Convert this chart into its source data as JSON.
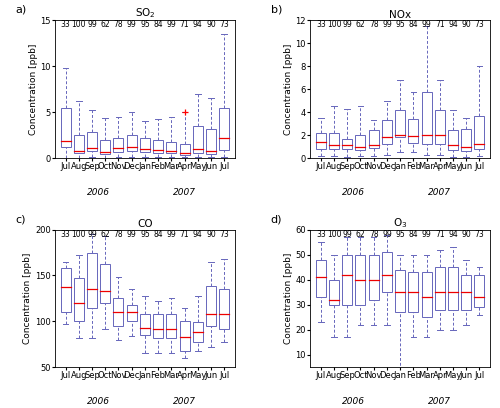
{
  "months": [
    "Jul",
    "Aug",
    "Sep",
    "Oct",
    "Nov",
    "Dec",
    "Jan",
    "Feb",
    "Mar",
    "Apr",
    "May",
    "Jun",
    "Jul"
  ],
  "counts": [
    33,
    100,
    99,
    62,
    78,
    99,
    95,
    84,
    99,
    71,
    94,
    90,
    73
  ],
  "so2": {
    "p5": [
      0.0,
      0.05,
      0.1,
      0.05,
      0.1,
      0.1,
      0.1,
      0.1,
      0.1,
      0.1,
      0.1,
      0.1,
      0.1
    ],
    "p25": [
      1.2,
      0.5,
      0.8,
      0.4,
      0.7,
      0.8,
      0.7,
      0.6,
      0.5,
      0.3,
      0.5,
      0.4,
      0.9
    ],
    "p50": [
      1.9,
      0.8,
      1.1,
      0.7,
      1.1,
      1.2,
      1.0,
      0.9,
      0.8,
      0.6,
      1.0,
      0.8,
      2.2
    ],
    "p75": [
      5.5,
      2.5,
      2.8,
      2.0,
      2.2,
      2.5,
      2.2,
      2.0,
      1.8,
      1.5,
      3.5,
      3.2,
      5.5
    ],
    "p95": [
      9.8,
      6.2,
      5.2,
      4.4,
      4.5,
      5.0,
      4.0,
      4.2,
      4.5,
      5.0,
      7.0,
      6.5,
      13.5
    ],
    "flier_x": [
      9
    ],
    "flier_y": [
      5.0
    ],
    "ylim": [
      0,
      15
    ],
    "yticks": [
      0,
      5,
      10,
      15
    ]
  },
  "nox": {
    "p5": [
      0.2,
      0.15,
      0.1,
      0.15,
      0.2,
      0.3,
      0.5,
      0.5,
      0.3,
      0.25,
      0.1,
      0.1,
      0.2
    ],
    "p25": [
      0.8,
      0.8,
      0.8,
      0.7,
      0.9,
      1.2,
      1.8,
      1.3,
      1.2,
      1.2,
      0.7,
      0.6,
      0.8
    ],
    "p50": [
      1.4,
      1.1,
      1.1,
      1.0,
      1.1,
      1.8,
      2.0,
      1.9,
      2.0,
      2.0,
      1.1,
      1.0,
      1.2
    ],
    "p75": [
      2.2,
      2.2,
      1.7,
      2.0,
      2.4,
      3.3,
      4.2,
      3.4,
      5.8,
      4.2,
      2.4,
      2.5,
      3.7
    ],
    "p95": [
      3.5,
      4.5,
      4.3,
      4.5,
      3.3,
      5.0,
      6.8,
      5.8,
      11.5,
      6.8,
      4.2,
      3.5,
      8.0
    ],
    "ylim": [
      0,
      12
    ],
    "yticks": [
      0,
      2,
      4,
      6,
      8,
      10,
      12
    ]
  },
  "co": {
    "p5": [
      97,
      82,
      82,
      92,
      80,
      84,
      65,
      65,
      65,
      60,
      68,
      72,
      78
    ],
    "p25": [
      110,
      100,
      115,
      120,
      95,
      100,
      85,
      82,
      82,
      68,
      78,
      95,
      92
    ],
    "p50": [
      137,
      120,
      135,
      133,
      110,
      110,
      93,
      92,
      92,
      83,
      88,
      108,
      108
    ],
    "p75": [
      158,
      147,
      175,
      163,
      125,
      118,
      108,
      108,
      108,
      100,
      99,
      138,
      135
    ],
    "p95": [
      165,
      172,
      195,
      193,
      148,
      135,
      128,
      122,
      125,
      115,
      128,
      165,
      168
    ],
    "ylim": [
      50,
      200
    ],
    "yticks": [
      50,
      100,
      150,
      200
    ]
  },
  "o3": {
    "counts": [
      33,
      100,
      99,
      62,
      78,
      99,
      95,
      84,
      99,
      71,
      94,
      90,
      73
    ],
    "p5": [
      23,
      17,
      17,
      22,
      22,
      22,
      2,
      17,
      17,
      20,
      20,
      22,
      26
    ],
    "p25": [
      33,
      30,
      30,
      30,
      32,
      35,
      27,
      27,
      25,
      28,
      28,
      28,
      29
    ],
    "p50": [
      41,
      32,
      42,
      40,
      40,
      42,
      35,
      35,
      33,
      35,
      35,
      35,
      33
    ],
    "p75": [
      48,
      40,
      50,
      50,
      50,
      51,
      44,
      43,
      43,
      45,
      45,
      42,
      42
    ],
    "p95": [
      55,
      50,
      57,
      57,
      57,
      58,
      50,
      50,
      50,
      52,
      53,
      48,
      45
    ],
    "ylim": [
      5,
      60
    ],
    "yticks": [
      10,
      20,
      30,
      40,
      50,
      60
    ]
  },
  "box_color": "#6666bb",
  "median_color": "#ee0000",
  "count_fontsize": 5.5,
  "label_fontsize": 6.5,
  "tick_fontsize": 6,
  "title_fontsize": 7.5,
  "panel_fontsize": 8,
  "year_fontsize": 6.5
}
